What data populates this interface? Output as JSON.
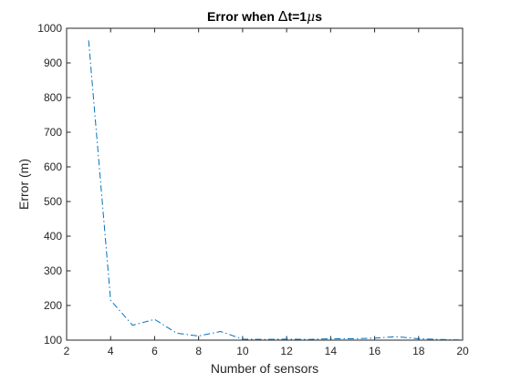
{
  "chart_data": {
    "type": "line",
    "title": "Error when Δt=1μs",
    "title_parts": {
      "prefix": "Error when ",
      "delta": "Δ",
      "middle": "t=1",
      "mu": "μ",
      "suffix": "s"
    },
    "xlabel": "Number of sensors",
    "ylabel": "Error (m)",
    "xlim": [
      2,
      20
    ],
    "ylim": [
      100,
      1000
    ],
    "xticks": [
      2,
      4,
      6,
      8,
      10,
      12,
      14,
      16,
      18,
      20
    ],
    "yticks": [
      100,
      200,
      300,
      400,
      500,
      600,
      700,
      800,
      900,
      1000
    ],
    "grid": false,
    "series": [
      {
        "style": "dash-dot",
        "color": "#0072bd",
        "x": [
          3,
          4,
          5,
          6,
          7,
          8,
          9,
          10,
          11,
          12,
          13,
          14,
          15,
          16,
          17,
          18,
          19,
          20
        ],
        "y": [
          965,
          215,
          143,
          160,
          120,
          112,
          125,
          103,
          102,
          103,
          102,
          104,
          104,
          106,
          110,
          104,
          102,
          101
        ]
      }
    ]
  }
}
